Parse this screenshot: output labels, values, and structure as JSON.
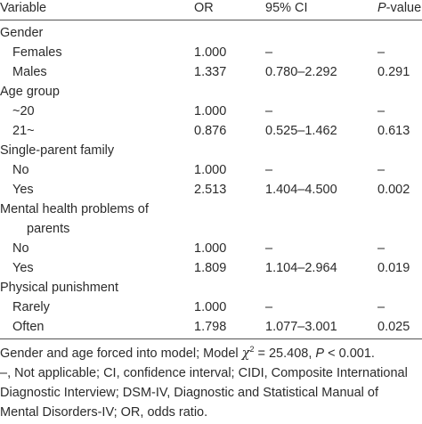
{
  "header": {
    "variable": "Variable",
    "or": "OR",
    "ci": "95% CI",
    "p_italic": "P",
    "p_rest": "-value"
  },
  "rows": [
    {
      "label": "Gender",
      "type": "group"
    },
    {
      "label": "Females",
      "or": "1.000",
      "ci": "–",
      "p": "–"
    },
    {
      "label": "Males",
      "or": "1.337",
      "ci": "0.780–2.292",
      "p": "0.291"
    },
    {
      "label": "Age group",
      "type": "group"
    },
    {
      "label": "~20",
      "or": "1.000",
      "ci": "–",
      "p": "–"
    },
    {
      "label": "21~",
      "or": "0.876",
      "ci": "0.525–1.462",
      "p": "0.613"
    },
    {
      "label": "Single-parent family",
      "type": "group"
    },
    {
      "label": "No",
      "or": "1.000",
      "ci": "–",
      "p": "–"
    },
    {
      "label": "Yes",
      "or": "2.513",
      "ci": "1.404–4.500",
      "p": "0.002"
    },
    {
      "label": "Mental health problems of",
      "type": "group"
    },
    {
      "label": "parents",
      "type": "group-cont"
    },
    {
      "label": "No",
      "or": "1.000",
      "ci": "–",
      "p": "–"
    },
    {
      "label": "Yes",
      "or": "1.809",
      "ci": "1.104–2.964",
      "p": "0.019"
    },
    {
      "label": "Physical punishment",
      "type": "group"
    },
    {
      "label": "Rarely",
      "or": "1.000",
      "ci": "–",
      "p": "–"
    },
    {
      "label": "Often",
      "or": "1.798",
      "ci": "1.077–3.001",
      "p": "0.025"
    }
  ],
  "footnote": {
    "line1_a": "Gender and age forced into model; Model ",
    "chi": "χ",
    "sup": "2",
    "line1_b": " = 25.408, ",
    "line1_p": "P",
    "line1_c": " < 0.001.",
    "line2": "–, Not applicable; CI, confidence interval; CIDI, Composite International",
    "line3": "Diagnostic Interview; DSM-IV, Diagnostic and Statistical Manual of",
    "line4": "Mental Disorders-IV; OR, odds ratio."
  }
}
